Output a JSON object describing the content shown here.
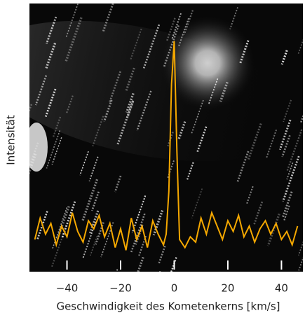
{
  "chart_data": {
    "type": "line",
    "xlabel": "Geschwindigkeit des Kometenkerns  [km/s]",
    "ylabel": "Intensität",
    "x": [
      -52,
      -50,
      -48,
      -46,
      -44,
      -42,
      -40,
      -38,
      -36,
      -34,
      -32,
      -30,
      -28,
      -26,
      -24,
      -22,
      -20,
      -18,
      -16,
      -14,
      -12,
      -10,
      -8,
      -6,
      -4,
      -3,
      -2,
      -1,
      0,
      1,
      2,
      4,
      6,
      8,
      10,
      12,
      14,
      16,
      18,
      20,
      22,
      24,
      26,
      28,
      30,
      32,
      34,
      36,
      38,
      40,
      42,
      44,
      46
    ],
    "series": [
      {
        "color": "#f5a800",
        "values": [
          12,
          20,
          14,
          18,
          10,
          17,
          13,
          22,
          15,
          11,
          19,
          16,
          21,
          13,
          18,
          9,
          16,
          8,
          20,
          12,
          17,
          9,
          19,
          14,
          10,
          14,
          30,
          70,
          86,
          45,
          12,
          9,
          13,
          11,
          20,
          14,
          22,
          17,
          12,
          19,
          15,
          21,
          13,
          17,
          11,
          16,
          19,
          14,
          18,
          12,
          15,
          10,
          17
        ]
      }
    ],
    "xlim": [
      -54,
      48
    ],
    "xticks": [
      {
        "value": -40,
        "label": "−40"
      },
      {
        "value": -20,
        "label": "−20"
      },
      0,
      20,
      40
    ],
    "ylim": [
      0,
      100
    ]
  }
}
